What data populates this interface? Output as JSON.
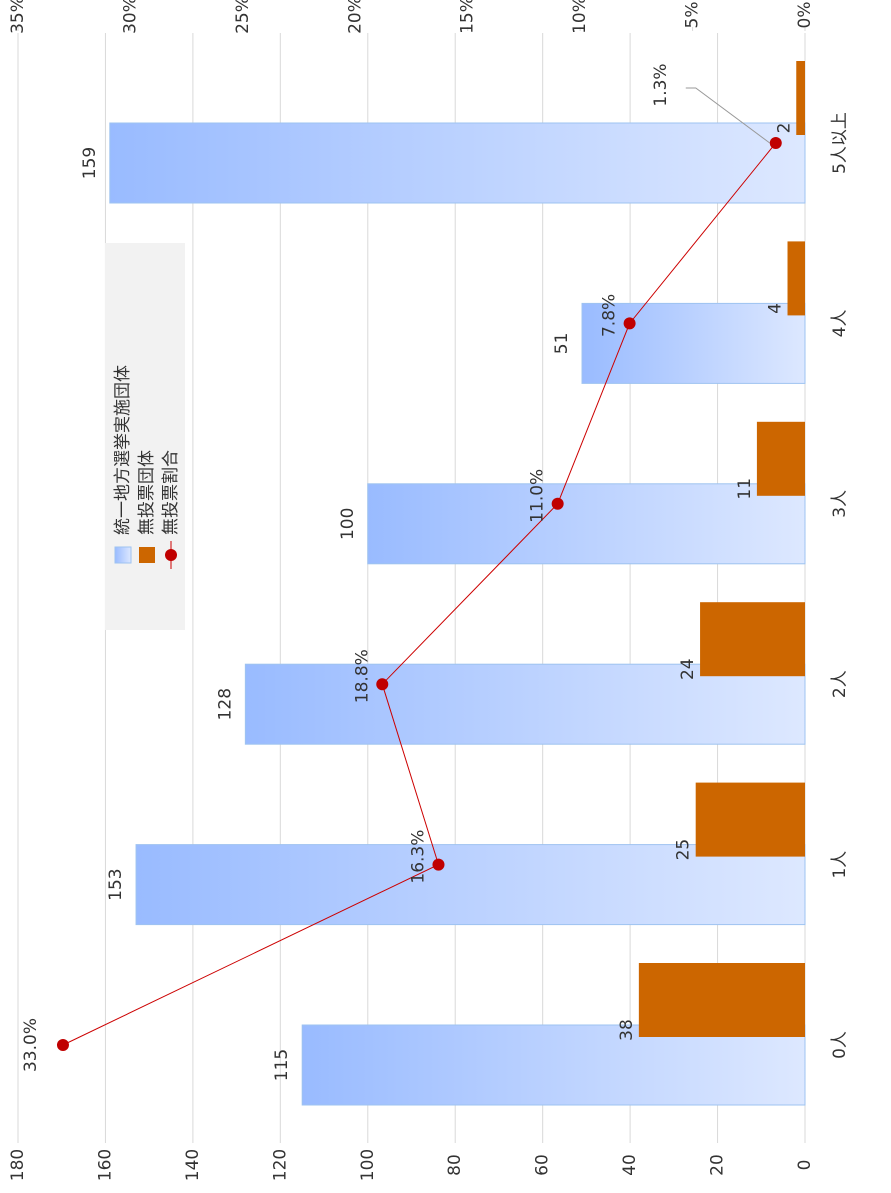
{
  "chart_data": {
    "type": "bar",
    "categories": [
      "0人",
      "1人",
      "2人",
      "3人",
      "4人",
      "5人以上"
    ],
    "series": [
      {
        "name": "統一地方選挙実施団体",
        "color": "#99bbff",
        "values": [
          115,
          153,
          128,
          100,
          51,
          159
        ]
      },
      {
        "name": "無投票団体",
        "color": "#cc6600",
        "values": [
          38,
          25,
          24,
          11,
          4,
          2
        ]
      },
      {
        "name": "無投票割合",
        "color": "#cc0000",
        "type": "line",
        "axis": "y2",
        "values": [
          33.0,
          16.3,
          18.8,
          11.0,
          7.8,
          1.3
        ],
        "value_labels": [
          "33.0%",
          "16.3%",
          "18.8%",
          "11.0%",
          "7.8%",
          "1.3%"
        ]
      }
    ],
    "ylim": [
      0,
      180
    ],
    "yticks": [
      0,
      20,
      40,
      60,
      80,
      100,
      120,
      140,
      160,
      180
    ],
    "y2lim": [
      0,
      35
    ],
    "y2ticks": [
      {
        "value": 0,
        "label": "0%"
      },
      {
        "value": 5,
        "label": "5%"
      },
      {
        "value": 10,
        "label": "10%"
      },
      {
        "value": 15,
        "label": "15%"
      },
      {
        "value": 20,
        "label": "20%"
      },
      {
        "value": 25,
        "label": "25%"
      },
      {
        "value": 30,
        "label": "30%"
      },
      {
        "value": 35,
        "label": "35%"
      }
    ],
    "grid": true,
    "legend": "top-right"
  }
}
